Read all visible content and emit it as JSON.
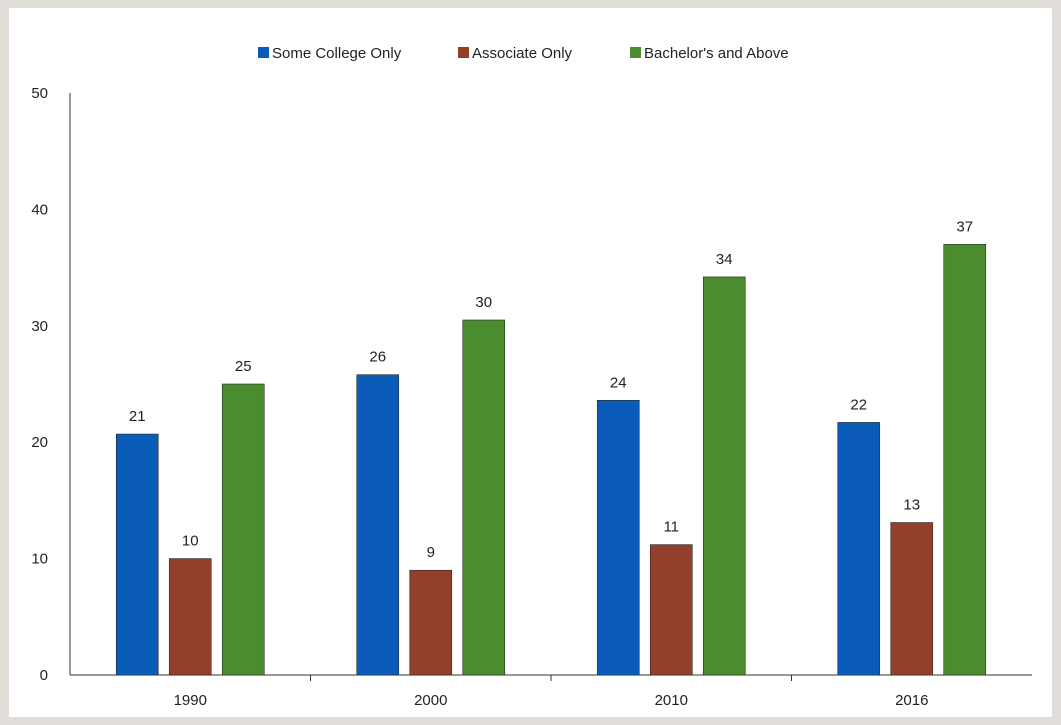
{
  "chart_data": {
    "type": "bar",
    "categories": [
      "1990",
      "2000",
      "2010",
      "2016"
    ],
    "series": [
      {
        "name": "Some College Only",
        "color": "#0a5cb8",
        "values": [
          20.7,
          25.8,
          23.6,
          21.7
        ],
        "labels": [
          "21",
          "26",
          "24",
          "22"
        ]
      },
      {
        "name": "Associate Only",
        "color": "#923f2c",
        "values": [
          10.0,
          9.0,
          11.2,
          13.1
        ],
        "labels": [
          "10",
          "9",
          "11",
          "13"
        ]
      },
      {
        "name": "Bachelor's and Above",
        "color": "#4a8c2e",
        "values": [
          25.0,
          30.5,
          34.2,
          37.0
        ],
        "labels": [
          "25",
          "30",
          "34",
          "37"
        ]
      }
    ],
    "ylim": [
      0,
      50
    ],
    "yticks": [
      0,
      10,
      20,
      30,
      40,
      50
    ],
    "grid": false,
    "legend": "top",
    "title": "",
    "xlabel": "",
    "ylabel": ""
  }
}
